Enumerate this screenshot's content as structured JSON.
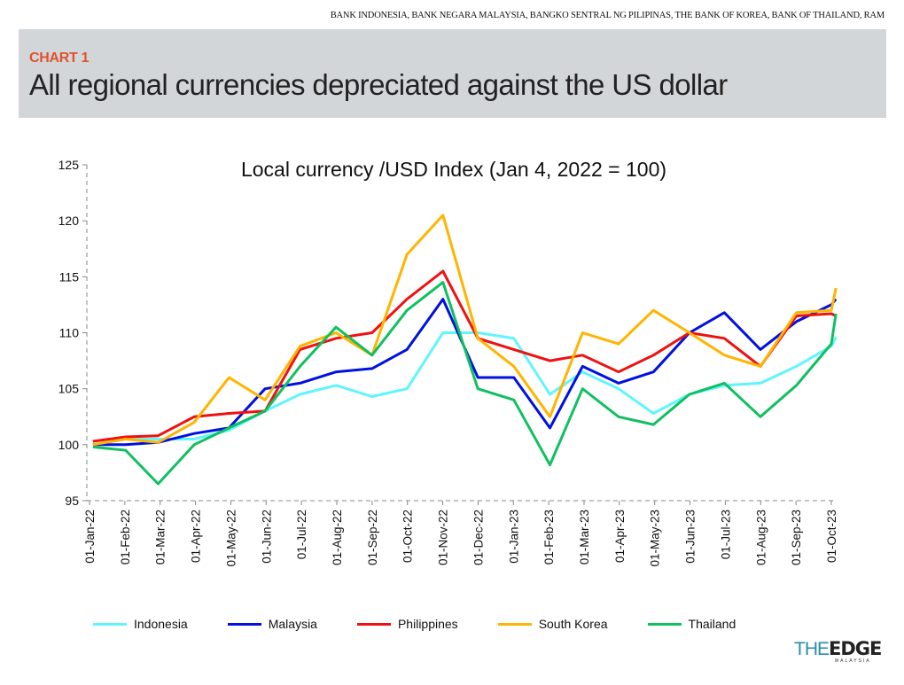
{
  "source": "BANK INDONESIA, BANK NEGARA MALAYSIA, BANGKO SENTRAL NG PILIPINAS, THE BANK OF KOREA, BANK OF THAILAND, RAM",
  "header": {
    "chart_number": "CHART 1",
    "headline": "All regional currencies depreciated against the US dollar"
  },
  "logo": {
    "text": "THE EDGE MALAYSIA"
  },
  "chart_data": {
    "type": "line",
    "title": "Local currency /USD Index (Jan 4, 2022 = 100)",
    "xlabel": "",
    "ylabel": "",
    "ylim": [
      95,
      125
    ],
    "yticks": [
      "95",
      "100",
      "105",
      "110",
      "115",
      "120",
      "125"
    ],
    "xticks": [
      "01-Jan-22",
      "01-Feb-22",
      "01-Mar-22",
      "01-Apr-22",
      "01-May-22",
      "01-Jun-22",
      "01-Jul-22",
      "01-Aug-22",
      "01-Sep-22",
      "01-Oct-22",
      "01-Nov-22",
      "01-Dec-22",
      "01-Jan-23",
      "01-Feb-23",
      "01-Mar-23",
      "01-Apr-23",
      "01-May-23",
      "01-Jun-23",
      "01-Jul-23",
      "01-Aug-23",
      "01-Sep-23",
      "01-Oct-23"
    ],
    "x": [
      "2022-01-04",
      "2022-02-01",
      "2022-03-01",
      "2022-04-01",
      "2022-05-01",
      "2022-06-01",
      "2022-07-01",
      "2022-08-01",
      "2022-09-01",
      "2022-10-01",
      "2022-11-01",
      "2022-12-01",
      "2023-01-01",
      "2023-02-01",
      "2023-03-01",
      "2023-04-01",
      "2023-05-01",
      "2023-06-01",
      "2023-07-01",
      "2023-08-01",
      "2023-09-01",
      "2023-10-01",
      "2023-10-05"
    ],
    "grid": false,
    "legend": "bottom",
    "series": [
      {
        "name": "Indonesia",
        "color": "#5ff5ff",
        "values": [
          100,
          100.5,
          100.5,
          100.5,
          101.3,
          103,
          104.5,
          105.3,
          104.3,
          105,
          110,
          110,
          109.5,
          104.5,
          106.5,
          105,
          102.8,
          104.5,
          105.3,
          105.5,
          107,
          108.8,
          109.6
        ]
      },
      {
        "name": "Malaysia",
        "color": "#0010e0",
        "values": [
          100,
          100,
          100.2,
          101,
          101.5,
          105,
          105.5,
          106.5,
          106.8,
          108.5,
          113,
          106,
          106,
          101.5,
          107,
          105.5,
          106.5,
          110,
          111.8,
          108.5,
          111,
          112.5,
          113
        ]
      },
      {
        "name": "Philippines",
        "color": "#f01010",
        "values": [
          100.3,
          100.7,
          100.8,
          102.5,
          102.8,
          103,
          108.5,
          109.5,
          110,
          113,
          115.5,
          109.5,
          108.5,
          107.5,
          108,
          106.5,
          108,
          110,
          109.5,
          107,
          111.5,
          111.7,
          111.5
        ]
      },
      {
        "name": "South Korea",
        "color": "#ffb400",
        "values": [
          100,
          100.5,
          100.2,
          102,
          106,
          104,
          108.8,
          110,
          108,
          117,
          120.5,
          109.5,
          107,
          102.5,
          110,
          109,
          112,
          110,
          108,
          107,
          111.8,
          112,
          114
        ]
      },
      {
        "name": "Thailand",
        "color": "#10c060",
        "values": [
          99.8,
          99.5,
          96.5,
          100,
          101.5,
          103,
          107,
          110.5,
          108,
          112,
          114.5,
          105,
          104,
          98.2,
          105,
          102.5,
          101.8,
          104.5,
          105.5,
          102.5,
          105.3,
          109,
          111.7
        ]
      }
    ]
  }
}
